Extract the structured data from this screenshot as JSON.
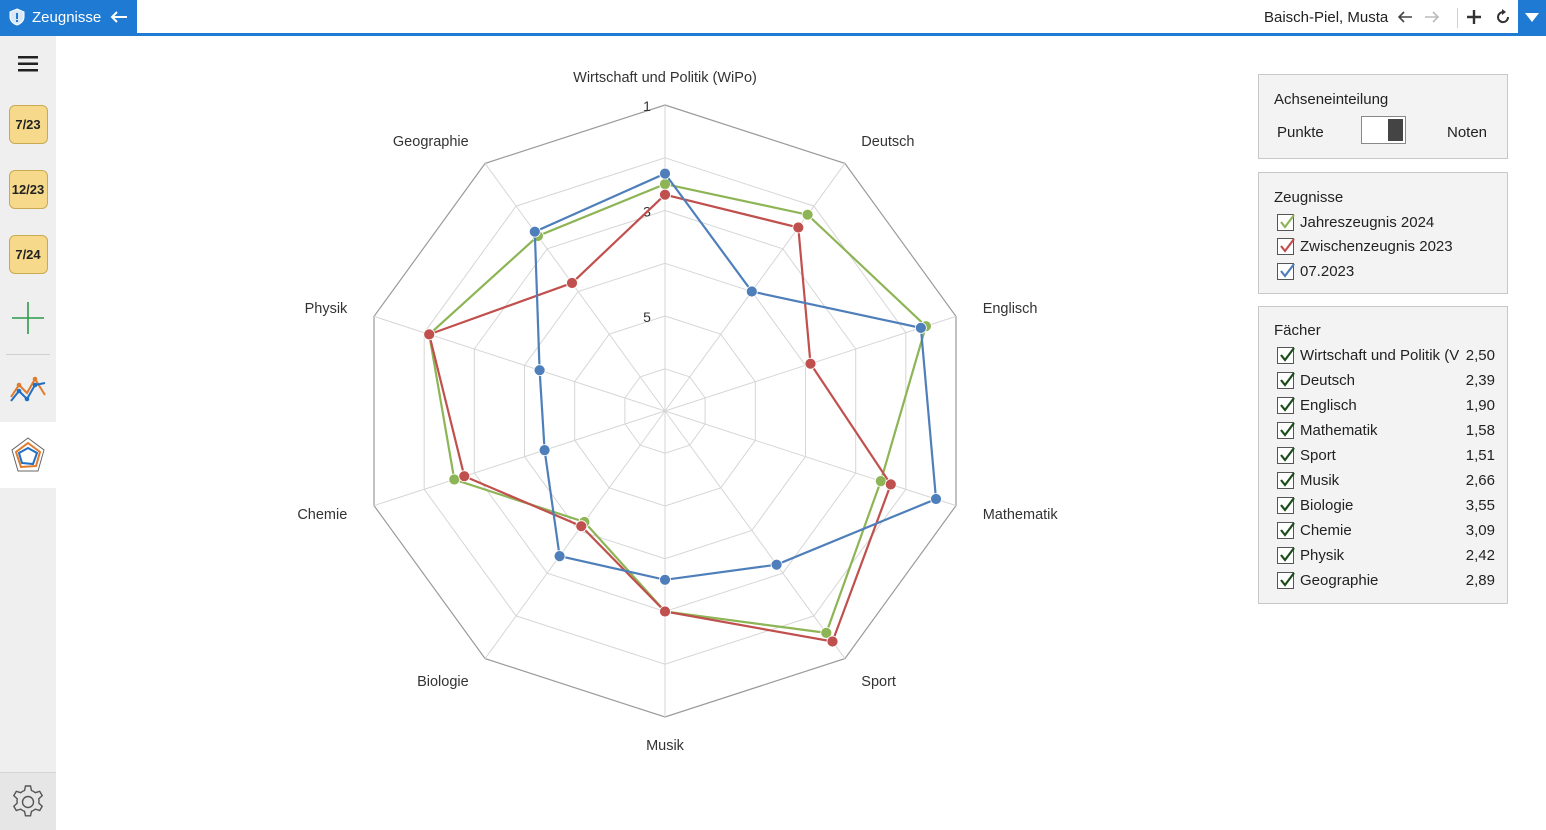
{
  "app": {
    "tab_title": "Zeugnisse",
    "user_name": "Baisch-Piel, Musta"
  },
  "sidebar": {
    "dates": [
      "7/23",
      "12/23",
      "7/24"
    ]
  },
  "icons": {
    "app_tab": "shield-icon",
    "back": "arrow-left-icon",
    "nav_back": "arrow-left-icon",
    "nav_forward": "arrow-right-icon",
    "add": "plus-icon",
    "refresh": "refresh-icon",
    "dropdown": "triangle-down-icon",
    "menu": "hamburger-menu-icon",
    "add_entry": "plus-icon",
    "line_chart": "line-chart-icon",
    "radar_chart": "radar-chart-icon",
    "settings": "gear-icon"
  },
  "colors": {
    "accent": "#1f7ad3",
    "series_2024": "#8db556",
    "series_2023": "#c0504d",
    "series_0723": "#4f7fba",
    "date_pill": "#f7d98b"
  },
  "axis_panel": {
    "title": "Achseneinteilung",
    "left_label": "Punkte",
    "right_label": "Noten",
    "selected": "Noten"
  },
  "reports_panel": {
    "title": "Zeugnisse",
    "items": [
      {
        "label": "Jahreszeugnis 2024",
        "checked": true,
        "color": "#8db556"
      },
      {
        "label": "Zwischenzeugnis 2023",
        "checked": true,
        "color": "#c0504d"
      },
      {
        "label": "07.2023",
        "checked": true,
        "color": "#4f7fba"
      }
    ]
  },
  "subjects_panel": {
    "title": "Fächer",
    "items": [
      {
        "label": "Wirtschaft und Politik (V",
        "value": "2,50",
        "checked": true
      },
      {
        "label": "Deutsch",
        "value": "2,39",
        "checked": true
      },
      {
        "label": "Englisch",
        "value": "1,90",
        "checked": true
      },
      {
        "label": "Mathematik",
        "value": "1,58",
        "checked": true
      },
      {
        "label": "Sport",
        "value": "1,51",
        "checked": true
      },
      {
        "label": "Musik",
        "value": "2,66",
        "checked": true
      },
      {
        "label": "Biologie",
        "value": "3,55",
        "checked": true
      },
      {
        "label": "Chemie",
        "value": "3,09",
        "checked": true
      },
      {
        "label": "Physik",
        "value": "2,42",
        "checked": true
      },
      {
        "label": "Geographie",
        "value": "2,89",
        "checked": true
      }
    ]
  },
  "chart_data": {
    "type": "radar",
    "axes": [
      "Wirtschaft und Politik (WiPo)",
      "Deutsch",
      "Englisch",
      "Mathematik",
      "Sport",
      "Musik",
      "Biologie",
      "Chemie",
      "Physik",
      "Geographie"
    ],
    "scale": {
      "min": 1,
      "max": 6,
      "reversed": true,
      "center": 6.8
    },
    "tick_labels": [
      "1",
      "3",
      "5"
    ],
    "grid": true,
    "series": [
      {
        "name": "Jahreszeugnis 2024",
        "color": "#8db556",
        "values": [
          2.5,
          2.2,
          1.6,
          2.5,
          1.6,
          3.0,
          4.2,
          2.6,
          2.1,
          2.7
        ]
      },
      {
        "name": "Zwischenzeugnis 2023",
        "color": "#c0504d",
        "values": [
          2.7,
          2.5,
          3.9,
          2.3,
          1.4,
          3.0,
          4.1,
          2.8,
          2.1,
          3.8
        ]
      },
      {
        "name": "07.2023",
        "color": "#4f7fba",
        "values": [
          2.3,
          4.0,
          1.7,
          1.4,
          3.2,
          3.6,
          3.4,
          4.4,
          4.3,
          2.6
        ]
      }
    ]
  }
}
